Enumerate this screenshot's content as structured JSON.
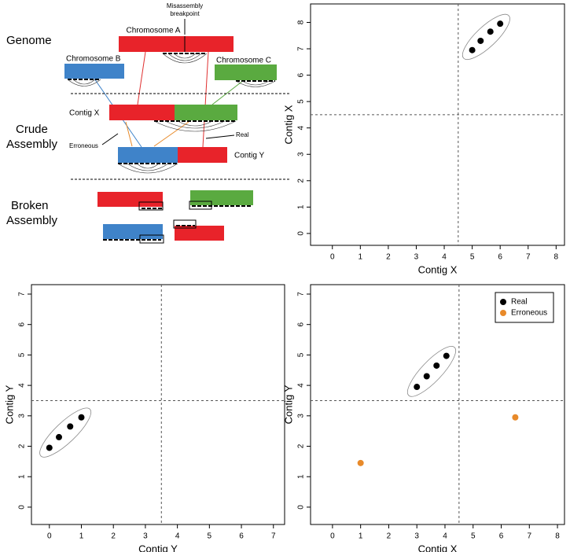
{
  "diagram": {
    "genome": "Genome",
    "crude": [
      "Crude",
      "Assembly"
    ],
    "broken": [
      "Broken",
      "Assembly"
    ],
    "breakpoint": [
      "Misassembly",
      "breakpoint"
    ],
    "chromosome_a": "Chromosome A",
    "chromosome_b": "Chromosome B",
    "chromosome_c": "Chromosome C",
    "contig_x": "Contig X",
    "contig_y": "Contig Y",
    "erroneous": "Erroneous",
    "real": "Real"
  },
  "chart_data": [
    {
      "type": "scatter",
      "x_label": "Contig X",
      "y_label": "Contig X",
      "xlim": [
        -0.78,
        8.3
      ],
      "ylim": [
        -0.45,
        8.7
      ],
      "xticks": [
        0,
        1,
        2,
        3,
        4,
        5,
        6,
        7,
        8
      ],
      "yticks": [
        0,
        1,
        2,
        3,
        4,
        5,
        6,
        7,
        8
      ],
      "vline": 4.5,
      "hline": 4.5,
      "series": [
        {
          "color": "#000000",
          "x": [
            5,
            5.3,
            5.65,
            6
          ],
          "values": [
            6.95,
            7.3,
            7.65,
            7.95
          ]
        }
      ]
    },
    {
      "type": "scatter",
      "x_label": "Contig Y",
      "y_label": "Contig Y",
      "xlim": [
        -0.56,
        7.35
      ],
      "ylim": [
        -0.57,
        7.31
      ],
      "xticks": [
        0,
        1,
        2,
        3,
        4,
        5,
        6,
        7
      ],
      "yticks": [
        0,
        1,
        2,
        3,
        4,
        5,
        6,
        7
      ],
      "vline": 3.5,
      "hline": 3.5,
      "series": [
        {
          "color": "#000000",
          "x": [
            0,
            0.3,
            0.65,
            1
          ],
          "values": [
            1.95,
            2.3,
            2.65,
            2.95
          ]
        }
      ]
    },
    {
      "type": "scatter",
      "x_label": "Contig X",
      "y_label": "Contig Y",
      "xlim": [
        -0.78,
        8.25
      ],
      "ylim": [
        -0.57,
        7.31
      ],
      "xticks": [
        0,
        1,
        2,
        3,
        4,
        5,
        6,
        7,
        8
      ],
      "yticks": [
        0,
        1,
        2,
        3,
        4,
        5,
        6,
        7
      ],
      "vline": 4.5,
      "hline": 3.5,
      "legend": "top-right",
      "series": [
        {
          "name": "Real",
          "color": "#000000",
          "x": [
            3,
            3.35,
            3.7,
            4.05
          ],
          "values": [
            3.95,
            4.3,
            4.65,
            4.97
          ]
        },
        {
          "name": "Erroneous",
          "color": "#e88a2a",
          "x": [
            1,
            6.5
          ],
          "values": [
            1.45,
            2.95
          ]
        }
      ]
    }
  ]
}
